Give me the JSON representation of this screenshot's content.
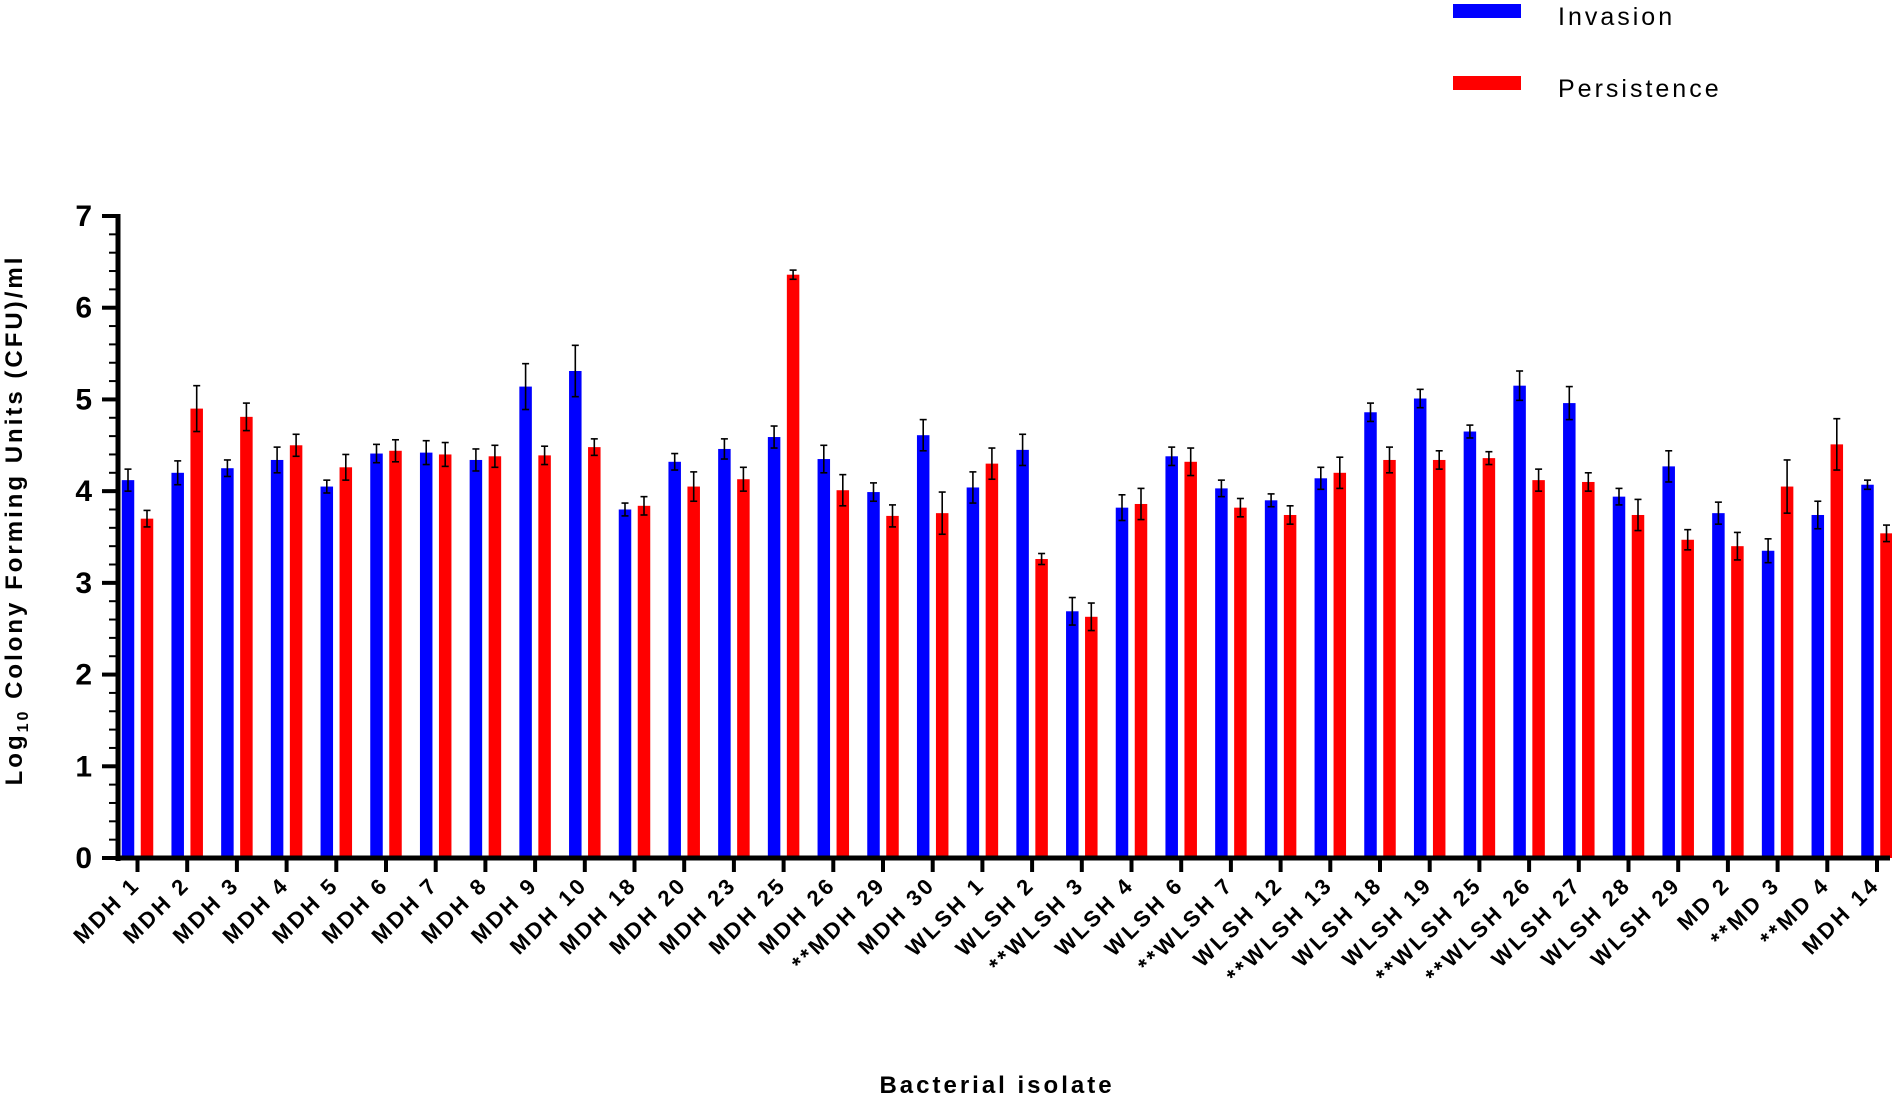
{
  "chart_data": {
    "type": "bar",
    "xlabel": "Bacterial isolate",
    "ylabel_main": "Log",
    "ylabel_sub": "10",
    "ylabel_rest": " Colony Forming Units (CFU)/ml",
    "ylim": [
      0,
      7
    ],
    "yticks": [
      "0",
      "1",
      "2",
      "3",
      "4",
      "5",
      "6",
      "7"
    ],
    "legend_position": "top-right",
    "categories": [
      "MDH 1",
      "MDH 2",
      "MDH 3",
      "MDH 4",
      "MDH 5",
      "MDH 6",
      "MDH 7",
      "MDH 8",
      "MDH 9",
      "MDH 10",
      "MDH 18",
      "MDH 20",
      "MDH 23",
      "MDH 25",
      "MDH 26",
      "**MDH 29",
      "MDH 30",
      "WLSH 1",
      "WLSH 2",
      "**WLSH 3",
      "WLSH 4",
      "WLSH 6",
      "**WLSH 7",
      "WLSH 12",
      "**WLSH 13",
      "WLSH 18",
      "WLSH 19",
      "**WLSH 25",
      "**WLSH 26",
      "WLSH 27",
      "WLSH 28",
      "WLSH 29",
      "MD 2",
      "**MD 3",
      "**MD 4",
      "MDH 14"
    ],
    "series": [
      {
        "name": "Invasion",
        "color": "#0000ff",
        "values": [
          4.12,
          4.2,
          4.25,
          4.34,
          4.05,
          4.41,
          4.42,
          4.34,
          5.14,
          5.31,
          3.8,
          4.32,
          4.46,
          4.59,
          4.35,
          3.99,
          4.61,
          4.04,
          4.45,
          2.69,
          3.82,
          4.38,
          4.03,
          3.9,
          4.14,
          4.86,
          5.01,
          4.65,
          5.15,
          4.96,
          3.94,
          4.27,
          3.76,
          3.35,
          3.74,
          4.07
        ],
        "errors": [
          0.12,
          0.13,
          0.09,
          0.14,
          0.07,
          0.1,
          0.13,
          0.12,
          0.25,
          0.28,
          0.07,
          0.09,
          0.11,
          0.12,
          0.15,
          0.1,
          0.17,
          0.17,
          0.17,
          0.15,
          0.14,
          0.1,
          0.09,
          0.07,
          0.12,
          0.1,
          0.1,
          0.07,
          0.16,
          0.18,
          0.09,
          0.17,
          0.12,
          0.13,
          0.15,
          0.05
        ]
      },
      {
        "name": "Persistence",
        "color": "#ff0000",
        "values": [
          3.7,
          4.9,
          4.81,
          4.5,
          4.26,
          4.44,
          4.4,
          4.38,
          4.39,
          4.48,
          3.84,
          4.05,
          4.13,
          6.36,
          4.01,
          3.73,
          3.76,
          4.3,
          3.26,
          2.63,
          3.86,
          4.32,
          3.82,
          3.74,
          4.2,
          4.34,
          4.34,
          4.36,
          4.12,
          4.1,
          3.74,
          3.47,
          3.4,
          4.05,
          4.51,
          3.54
        ],
        "errors": [
          0.09,
          0.25,
          0.15,
          0.12,
          0.14,
          0.12,
          0.13,
          0.12,
          0.1,
          0.09,
          0.1,
          0.16,
          0.13,
          0.05,
          0.17,
          0.12,
          0.23,
          0.17,
          0.06,
          0.15,
          0.17,
          0.15,
          0.1,
          0.1,
          0.17,
          0.14,
          0.1,
          0.07,
          0.12,
          0.1,
          0.17,
          0.11,
          0.15,
          0.29,
          0.28,
          0.09
        ]
      }
    ]
  }
}
